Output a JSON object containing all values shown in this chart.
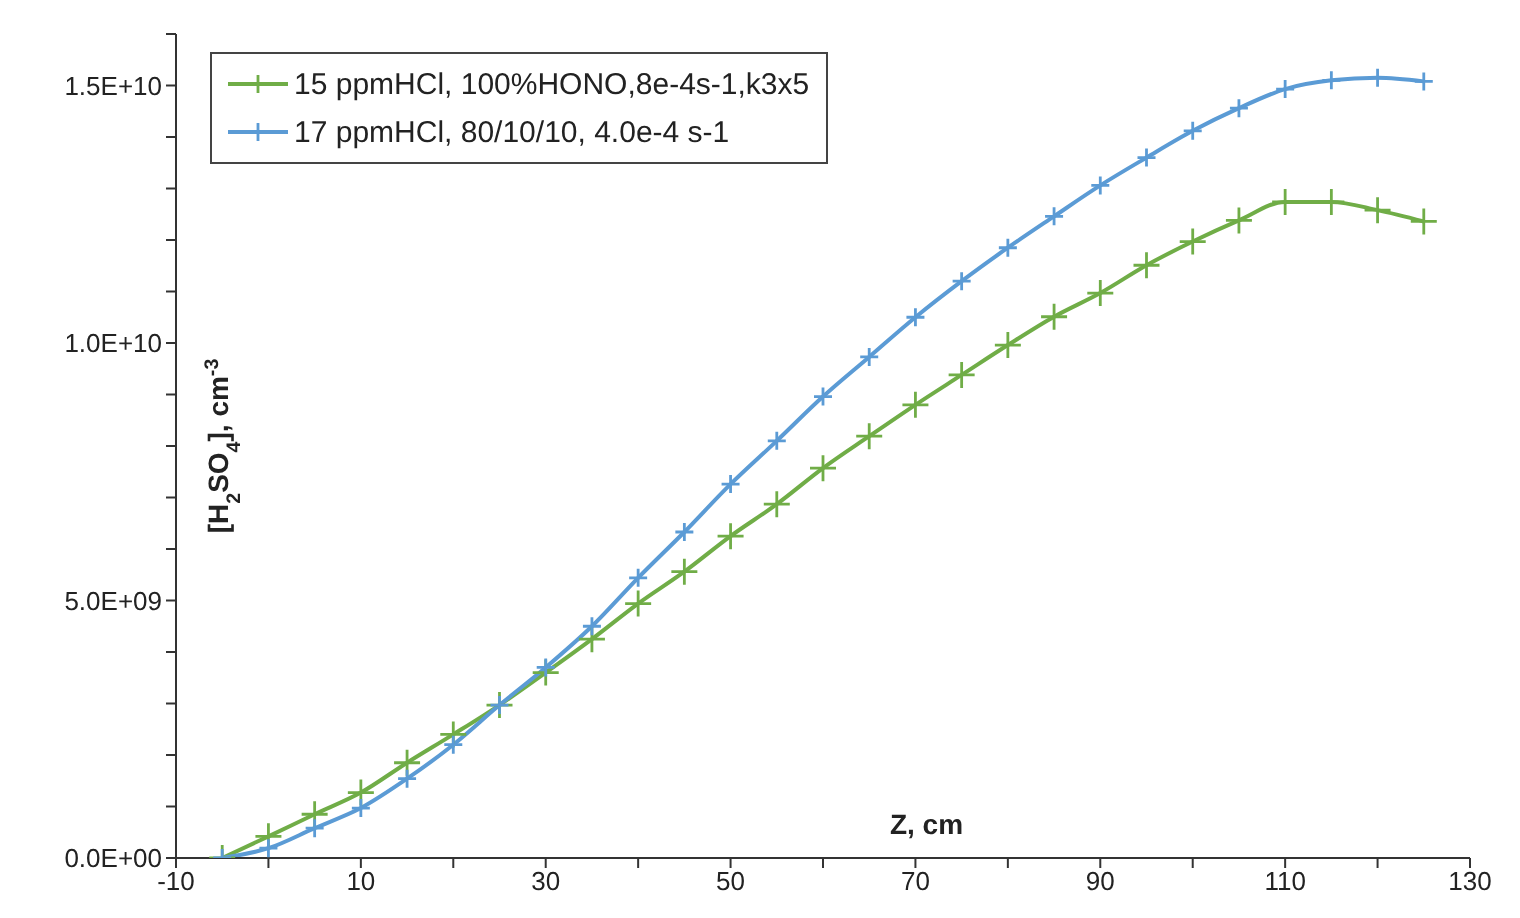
{
  "chart_data": {
    "type": "line",
    "xlabel": "Z, cm",
    "ylabel": "[H$_{2}$SO$_{4}$], cm$^{-3}$",
    "x": [
      -5,
      0,
      5,
      10,
      15,
      20,
      25,
      30,
      35,
      40,
      45,
      50,
      55,
      60,
      65,
      70,
      75,
      80,
      85,
      90,
      95,
      100,
      105,
      110,
      115,
      120,
      125
    ],
    "series": [
      {
        "name": "15 ppmHCl, 100%HONO,8e-4s-1,k3x5",
        "color": "#70ad47",
        "marker": "cross",
        "values": [
          0,
          420000000.0,
          850000000.0,
          1270000000.0,
          1850000000.0,
          2400000000.0,
          2970000000.0,
          3600000000.0,
          4250000000.0,
          4940000000.0,
          5560000000.0,
          6250000000.0,
          6870000000.0,
          7570000000.0,
          8190000000.0,
          8800000000.0,
          9380000000.0,
          9960000000.0,
          10510000000.0,
          10970000000.0,
          11510000000.0,
          11970000000.0,
          12380000000.0,
          12740000000.0,
          12740000000.0,
          12580000000.0,
          12360000000.0
        ]
      },
      {
        "name": "17 ppmHCl, 80/10/10, 4.0e-4 s-1",
        "color": "#5b9bd5",
        "marker": "cross",
        "values": [
          0,
          190000000.0,
          580000000.0,
          970000000.0,
          1540000000.0,
          2200000000.0,
          2970000000.0,
          3700000000.0,
          4500000000.0,
          5440000000.0,
          6330000000.0,
          7260000000.0,
          8100000000.0,
          8960000000.0,
          9730000000.0,
          10500000000.0,
          11200000000.0,
          11850000000.0,
          12460000000.0,
          13060000000.0,
          13600000000.0,
          14120000000.0,
          14560000000.0,
          14930000000.0,
          15100000000.0,
          15150000000.0,
          15080000000.0
        ]
      }
    ],
    "xlim": [
      -10,
      130
    ],
    "xticks": [
      -10,
      {
        "value": 0,
        "label": null
      },
      10,
      {
        "value": 20,
        "label": null
      },
      30,
      {
        "value": 40,
        "label": null
      },
      50,
      {
        "value": 60,
        "label": null
      },
      70,
      {
        "value": 80,
        "label": null
      },
      90,
      {
        "value": 100,
        "label": null
      },
      110,
      {
        "value": 120,
        "label": null
      },
      130
    ],
    "ylim": [
      0,
      16000000000.0
    ],
    "yticks": [
      {
        "value": 0,
        "label": "0.0E+00"
      },
      {
        "value": 1000000000.0,
        "label": null
      },
      {
        "value": 2000000000.0,
        "label": null
      },
      {
        "value": 3000000000.0,
        "label": null
      },
      {
        "value": 4000000000.0,
        "label": null
      },
      {
        "value": 5000000000.0,
        "label": "5.0E+09"
      },
      {
        "value": 6000000000.0,
        "label": null
      },
      {
        "value": 7000000000.0,
        "label": null
      },
      {
        "value": 8000000000.0,
        "label": null
      },
      {
        "value": 9000000000.0,
        "label": null
      },
      {
        "value": 10000000000.0,
        "label": "1.0E+10"
      },
      {
        "value": 11000000000.0,
        "label": null
      },
      {
        "value": 12000000000.0,
        "label": null
      },
      {
        "value": 13000000000.0,
        "label": null
      },
      {
        "value": 14000000000.0,
        "label": null
      },
      {
        "value": 15000000000.0,
        "label": "1.5E+10"
      },
      {
        "value": 16000000000.0,
        "label": null
      }
    ],
    "grid": false,
    "legend": "top left"
  }
}
